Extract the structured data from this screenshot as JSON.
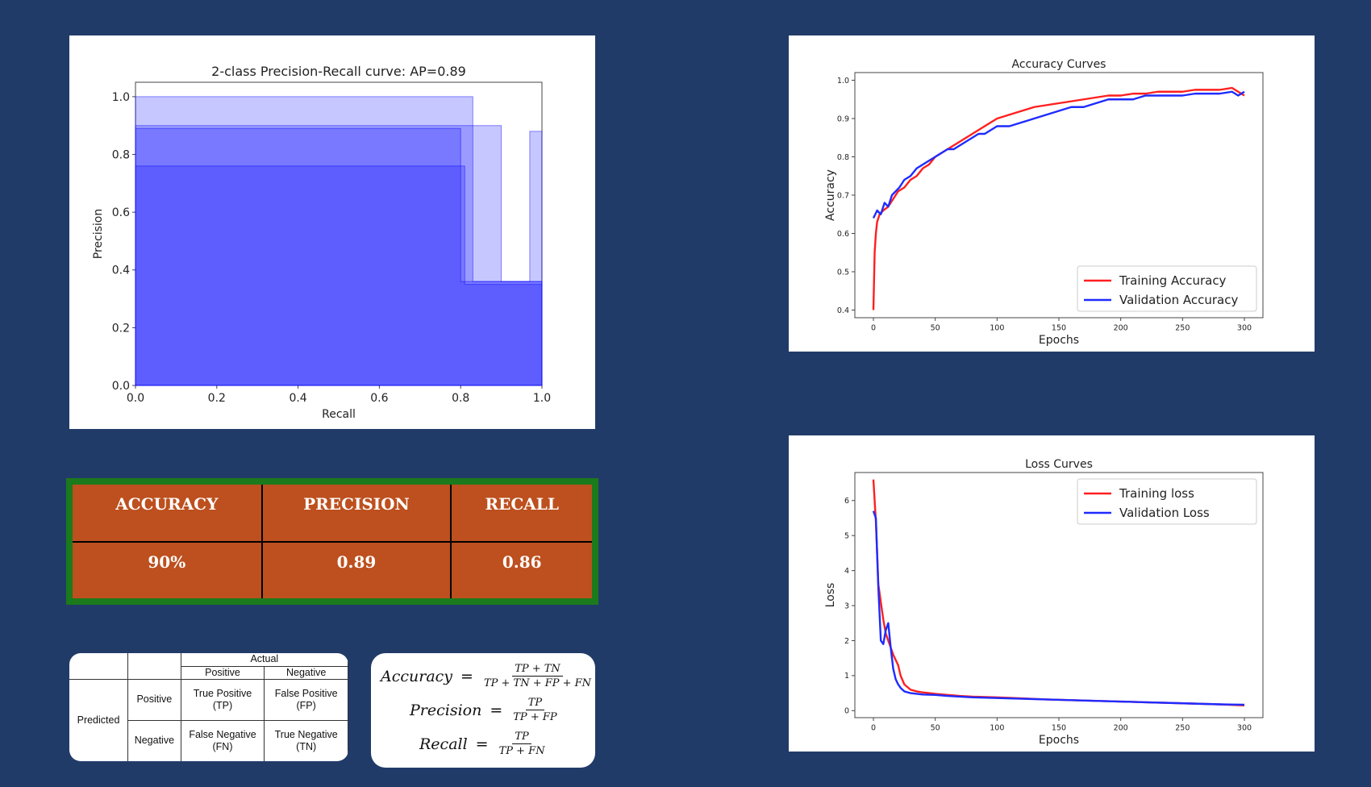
{
  "chart_data": [
    {
      "type": "area",
      "title": "2-class Precision-Recall curve: AP=0.89",
      "xlabel": "Recall",
      "ylabel": "Precision",
      "xlim": [
        0.0,
        1.0
      ],
      "ylim": [
        0.0,
        1.05
      ],
      "xticks": [
        "0.0",
        "0.2",
        "0.4",
        "0.6",
        "0.8",
        "1.0"
      ],
      "yticks": [
        "0.0",
        "0.2",
        "0.4",
        "0.6",
        "0.8",
        "1.0"
      ],
      "fill_color": "#0000ff",
      "series": [
        {
          "points": [
            [
              0.0,
              1.0
            ],
            [
              0.83,
              1.0
            ],
            [
              0.83,
              0.36
            ],
            [
              1.0,
              0.36
            ]
          ]
        },
        {
          "points": [
            [
              0.0,
              0.9
            ],
            [
              0.9,
              0.9
            ],
            [
              0.9,
              0.36
            ],
            [
              1.0,
              0.36
            ]
          ]
        },
        {
          "points": [
            [
              0.0,
              0.89
            ],
            [
              0.8,
              0.89
            ],
            [
              0.8,
              0.36
            ],
            [
              0.97,
              0.36
            ],
            [
              0.97,
              0.88
            ],
            [
              1.0,
              0.88
            ]
          ]
        },
        {
          "points": [
            [
              0.0,
              0.76
            ],
            [
              0.81,
              0.76
            ],
            [
              0.81,
              0.35
            ],
            [
              1.0,
              0.35
            ]
          ]
        }
      ]
    },
    {
      "type": "line",
      "title": "Accuracy Curves",
      "xlabel": "Epochs",
      "ylabel": "Accuracy",
      "xlim": [
        -15,
        315
      ],
      "ylim": [
        0.38,
        1.02
      ],
      "xticks": [
        "0",
        "50",
        "100",
        "150",
        "200",
        "250",
        "300"
      ],
      "yticks": [
        "0.4",
        "0.5",
        "0.6",
        "0.7",
        "0.8",
        "0.9",
        "1.0"
      ],
      "legend": "bottom-right",
      "series": [
        {
          "name": "Training Accuracy",
          "color": "#ff1f1f",
          "x": [
            0,
            1,
            2,
            3,
            5,
            8,
            12,
            16,
            20,
            25,
            30,
            35,
            40,
            45,
            50,
            55,
            60,
            65,
            70,
            75,
            80,
            85,
            90,
            95,
            100,
            110,
            120,
            130,
            140,
            150,
            160,
            170,
            180,
            190,
            200,
            210,
            220,
            230,
            240,
            250,
            260,
            270,
            280,
            290,
            295,
            300
          ],
          "y": [
            0.4,
            0.55,
            0.6,
            0.63,
            0.65,
            0.66,
            0.67,
            0.69,
            0.71,
            0.72,
            0.74,
            0.75,
            0.77,
            0.78,
            0.8,
            0.81,
            0.82,
            0.83,
            0.84,
            0.85,
            0.86,
            0.87,
            0.88,
            0.89,
            0.9,
            0.91,
            0.92,
            0.93,
            0.935,
            0.94,
            0.945,
            0.95,
            0.955,
            0.96,
            0.96,
            0.965,
            0.965,
            0.97,
            0.97,
            0.97,
            0.975,
            0.975,
            0.975,
            0.98,
            0.97,
            0.96
          ]
        },
        {
          "name": "Validation Accuracy",
          "color": "#1f2bff",
          "x": [
            0,
            3,
            6,
            9,
            12,
            15,
            18,
            21,
            25,
            30,
            35,
            40,
            45,
            50,
            55,
            60,
            65,
            70,
            75,
            80,
            85,
            90,
            95,
            100,
            110,
            120,
            130,
            140,
            150,
            160,
            170,
            180,
            190,
            200,
            210,
            220,
            230,
            240,
            250,
            260,
            270,
            280,
            290,
            295,
            300
          ],
          "y": [
            0.64,
            0.66,
            0.65,
            0.68,
            0.67,
            0.7,
            0.71,
            0.72,
            0.74,
            0.75,
            0.77,
            0.78,
            0.79,
            0.8,
            0.81,
            0.82,
            0.82,
            0.83,
            0.84,
            0.85,
            0.86,
            0.86,
            0.87,
            0.88,
            0.88,
            0.89,
            0.9,
            0.91,
            0.92,
            0.93,
            0.93,
            0.94,
            0.95,
            0.95,
            0.95,
            0.96,
            0.96,
            0.96,
            0.96,
            0.965,
            0.965,
            0.965,
            0.97,
            0.96,
            0.97
          ]
        }
      ]
    },
    {
      "type": "line",
      "title": "Loss Curves",
      "xlabel": "Epochs",
      "ylabel": "Loss",
      "xlim": [
        -15,
        315
      ],
      "ylim": [
        -0.2,
        6.8
      ],
      "xticks": [
        "0",
        "50",
        "100",
        "150",
        "200",
        "250",
        "300"
      ],
      "yticks": [
        "0",
        "1",
        "2",
        "3",
        "4",
        "5",
        "6"
      ],
      "legend": "top-right",
      "series": [
        {
          "name": "Training loss",
          "color": "#ff1f1f",
          "x": [
            0,
            2,
            4,
            6,
            8,
            10,
            12,
            14,
            16,
            18,
            20,
            22,
            25,
            30,
            35,
            40,
            50,
            60,
            70,
            80,
            100,
            120,
            140,
            160,
            180,
            200,
            220,
            240,
            260,
            280,
            300
          ],
          "y": [
            6.6,
            5.4,
            3.6,
            3.1,
            2.6,
            2.2,
            2.0,
            1.8,
            1.6,
            1.45,
            1.3,
            1.0,
            0.75,
            0.6,
            0.55,
            0.52,
            0.48,
            0.45,
            0.42,
            0.4,
            0.38,
            0.35,
            0.32,
            0.3,
            0.28,
            0.26,
            0.24,
            0.22,
            0.2,
            0.18,
            0.15
          ]
        },
        {
          "name": "Validation Loss",
          "color": "#1f2bff",
          "x": [
            0,
            2,
            4,
            6,
            8,
            10,
            12,
            14,
            16,
            18,
            20,
            22,
            25,
            30,
            35,
            40,
            50,
            60,
            70,
            80,
            100,
            120,
            140,
            160,
            180,
            200,
            220,
            240,
            260,
            280,
            300
          ],
          "y": [
            5.7,
            5.5,
            3.5,
            2.0,
            1.9,
            2.3,
            2.5,
            1.8,
            1.2,
            0.9,
            0.75,
            0.65,
            0.55,
            0.5,
            0.48,
            0.46,
            0.45,
            0.42,
            0.4,
            0.38,
            0.36,
            0.34,
            0.32,
            0.3,
            0.28,
            0.26,
            0.24,
            0.22,
            0.2,
            0.18,
            0.17
          ]
        }
      ]
    }
  ],
  "metrics": {
    "headers": [
      "ACCURACY",
      "PRECISION",
      "RECALL"
    ],
    "values": [
      "90%",
      "0.89",
      "0.86"
    ]
  },
  "confusion_matrix": {
    "actual": "Actual",
    "predicted": "Predicted",
    "positive": "Positive",
    "negative": "Negative",
    "tp": [
      "True Positive",
      "(TP)"
    ],
    "fp": [
      "False Positive",
      "(FP)"
    ],
    "fn": [
      "False Negative",
      "(FN)"
    ],
    "tn": [
      "True Negative",
      "(TN)"
    ]
  },
  "formulas": {
    "accuracy": {
      "lhs": "Accuracy",
      "eq": "=",
      "num": "TP + TN",
      "den": "TP + TN + FP + FN"
    },
    "precision": {
      "lhs": "Precision",
      "eq": "=",
      "num": "TP",
      "den": "TP + FP"
    },
    "recall": {
      "lhs": "Recall",
      "eq": "=",
      "num": "TP",
      "den": "TP + FN"
    }
  }
}
